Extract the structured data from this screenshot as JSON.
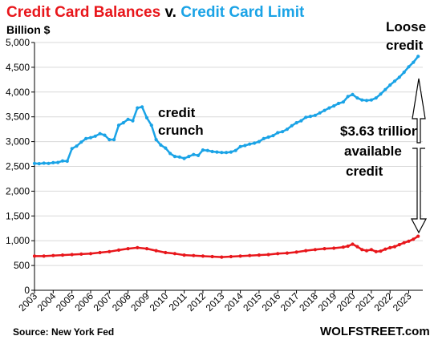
{
  "chart_data": {
    "type": "line",
    "title_part1": "Credit Card Balances",
    "title_part2": " v. ",
    "title_part3": "Credit Card Limit",
    "ylabel": "Billion $",
    "ylim": [
      0,
      5000
    ],
    "yticks": [
      0,
      500,
      1000,
      1500,
      2000,
      2500,
      3000,
      3500,
      4000,
      4500,
      5000
    ],
    "ytick_labels": [
      "0",
      "500",
      "1,000",
      "1,500",
      "2,000",
      "2,500",
      "3,000",
      "3,500",
      "4,000",
      "4,500",
      "5,000"
    ],
    "xlim": [
      2003,
      2023.75
    ],
    "xticks": [
      2003,
      2004,
      2005,
      2006,
      2007,
      2008,
      2009,
      2010,
      2011,
      2012,
      2013,
      2014,
      2015,
      2016,
      2017,
      2018,
      2019,
      2020,
      2021,
      2022,
      2023
    ],
    "xtick_labels": [
      "2003",
      "2004",
      "2005",
      "2006",
      "2007",
      "2008",
      "2009",
      "2010",
      "2011",
      "2012",
      "2013",
      "2014",
      "2015",
      "2016",
      "2017",
      "2018",
      "2019",
      "2020",
      "2021",
      "2022",
      "2023"
    ],
    "grid": true,
    "colors": {
      "balances": "#e8161b",
      "limit": "#1aa3e6",
      "grid": "#d9d9d9",
      "axis": "#000000"
    },
    "series": [
      {
        "key": "limit",
        "x": [
          2003.0,
          2003.25,
          2003.5,
          2003.75,
          2004.0,
          2004.25,
          2004.5,
          2004.75,
          2005.0,
          2005.25,
          2005.5,
          2005.75,
          2006.0,
          2006.25,
          2006.5,
          2006.75,
          2007.0,
          2007.25,
          2007.5,
          2007.75,
          2008.0,
          2008.25,
          2008.5,
          2008.75,
          2009.0,
          2009.25,
          2009.5,
          2009.75,
          2010.0,
          2010.25,
          2010.5,
          2010.75,
          2011.0,
          2011.25,
          2011.5,
          2011.75,
          2012.0,
          2012.25,
          2012.5,
          2012.75,
          2013.0,
          2013.25,
          2013.5,
          2013.75,
          2014.0,
          2014.25,
          2014.5,
          2014.75,
          2015.0,
          2015.25,
          2015.5,
          2015.75,
          2016.0,
          2016.25,
          2016.5,
          2016.75,
          2017.0,
          2017.25,
          2017.5,
          2017.75,
          2018.0,
          2018.25,
          2018.5,
          2018.75,
          2019.0,
          2019.25,
          2019.5,
          2019.75,
          2020.0,
          2020.25,
          2020.5,
          2020.75,
          2021.0,
          2021.25,
          2021.5,
          2021.75,
          2022.0,
          2022.25,
          2022.5,
          2022.75,
          2023.0,
          2023.25,
          2023.5
        ],
        "values": [
          2560,
          2555,
          2565,
          2560,
          2575,
          2580,
          2610,
          2605,
          2860,
          2910,
          2990,
          3060,
          3080,
          3110,
          3160,
          3130,
          3040,
          3040,
          3330,
          3380,
          3450,
          3420,
          3680,
          3700,
          3480,
          3330,
          3040,
          2930,
          2870,
          2760,
          2700,
          2690,
          2660,
          2700,
          2740,
          2720,
          2830,
          2820,
          2800,
          2790,
          2780,
          2780,
          2790,
          2820,
          2900,
          2920,
          2950,
          2970,
          3000,
          3060,
          3090,
          3120,
          3180,
          3200,
          3250,
          3320,
          3380,
          3420,
          3490,
          3510,
          3530,
          3580,
          3630,
          3680,
          3720,
          3770,
          3800,
          3910,
          3950,
          3880,
          3840,
          3830,
          3840,
          3880,
          3960,
          4050,
          4140,
          4220,
          4300,
          4400,
          4510,
          4600,
          4720
        ]
      },
      {
        "key": "balances",
        "x": [
          2003.0,
          2003.5,
          2004.0,
          2004.5,
          2005.0,
          2005.5,
          2006.0,
          2006.5,
          2007.0,
          2007.5,
          2008.0,
          2008.5,
          2009.0,
          2009.5,
          2010.0,
          2010.5,
          2011.0,
          2011.5,
          2012.0,
          2012.5,
          2013.0,
          2013.5,
          2014.0,
          2014.5,
          2015.0,
          2015.5,
          2016.0,
          2016.5,
          2017.0,
          2017.5,
          2018.0,
          2018.5,
          2019.0,
          2019.5,
          2019.75,
          2020.0,
          2020.25,
          2020.5,
          2020.75,
          2021.0,
          2021.25,
          2021.5,
          2021.75,
          2022.0,
          2022.25,
          2022.5,
          2022.75,
          2023.0,
          2023.25,
          2023.5
        ],
        "values": [
          690,
          690,
          700,
          710,
          720,
          730,
          740,
          760,
          780,
          810,
          840,
          860,
          840,
          800,
          760,
          740,
          710,
          700,
          690,
          680,
          670,
          680,
          690,
          700,
          710,
          720,
          740,
          750,
          770,
          800,
          820,
          840,
          850,
          870,
          890,
          930,
          880,
          820,
          800,
          820,
          780,
          790,
          830,
          860,
          880,
          920,
          960,
          990,
          1030,
          1090
        ]
      }
    ],
    "annotations": {
      "crunch_line1": "credit",
      "crunch_line2": "crunch",
      "loose_line1": "Loose",
      "loose_line2": "credit",
      "avail_line1": "$3.63 trillion",
      "avail_line2": "available",
      "avail_line3": "credit"
    },
    "source": "Source: New York Fed",
    "brand": "WOLFSTREET.com"
  }
}
